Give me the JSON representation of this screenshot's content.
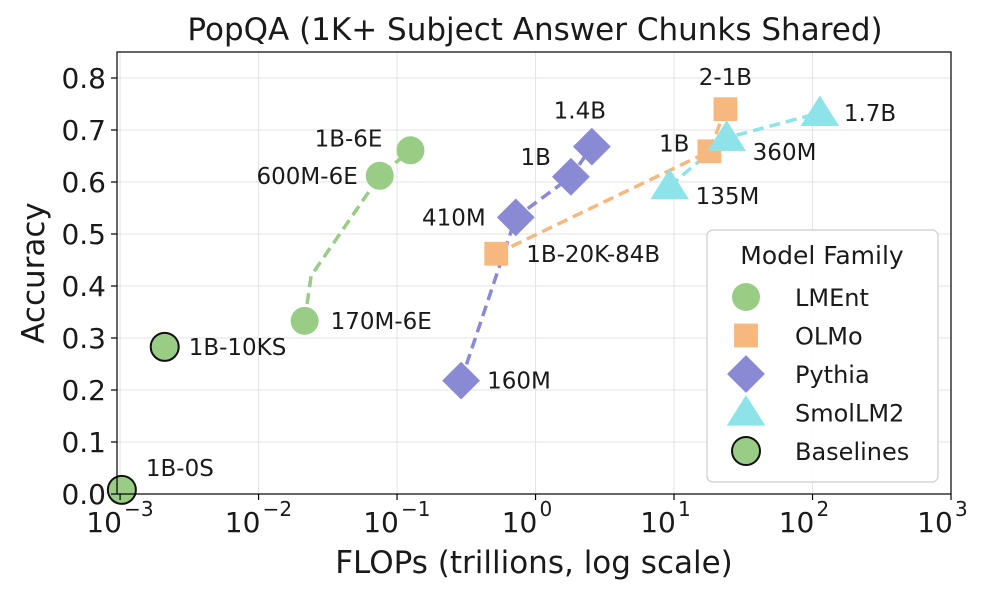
{
  "chart_data": {
    "type": "scatter",
    "title": "PopQA (1K+ Subject Answer Chunks Shared)",
    "xlabel": "FLOPs (trillions, log scale)",
    "ylabel": "Accuracy",
    "xscale": "log",
    "xlim": [
      0.00095,
      1000
    ],
    "ylim": [
      0.0,
      0.85
    ],
    "x_ticks": [
      0.001,
      0.01,
      0.1,
      1,
      10,
      100,
      1000
    ],
    "x_tick_labels": [
      {
        "base": "10",
        "exp": "−3"
      },
      {
        "base": "10",
        "exp": "−2"
      },
      {
        "base": "10",
        "exp": "−1"
      },
      {
        "base": "10",
        "exp": "0"
      },
      {
        "base": "10",
        "exp": "1"
      },
      {
        "base": "10",
        "exp": "2"
      },
      {
        "base": "10",
        "exp": "3"
      }
    ],
    "y_ticks": [
      0.0,
      0.1,
      0.2,
      0.3,
      0.4,
      0.5,
      0.6,
      0.7,
      0.8
    ],
    "y_tick_labels": [
      "0.0",
      "0.1",
      "0.2",
      "0.3",
      "0.4",
      "0.5",
      "0.6",
      "0.7",
      "0.8"
    ],
    "grid": true,
    "legend": {
      "title": "Model Family",
      "position": "lower-right"
    },
    "series": [
      {
        "name": "LMEnt",
        "marker": "circle",
        "color": "#99cc85",
        "line": true,
        "points": [
          {
            "x": 0.0215,
            "y": 0.333,
            "label": "170M-6E"
          },
          {
            "x": 0.024,
            "y": 0.42,
            "label": null
          },
          {
            "x": 0.075,
            "y": 0.612,
            "label": "600M-6E"
          },
          {
            "x": 0.125,
            "y": 0.661,
            "label": "1B-6E"
          }
        ]
      },
      {
        "name": "OLMo",
        "marker": "square",
        "color": "#f7b87f",
        "line": true,
        "points": [
          {
            "x": 0.52,
            "y": 0.462,
            "label": "1B-20K-84B"
          },
          {
            "x": 18.0,
            "y": 0.659,
            "label": "1B"
          },
          {
            "x": 23.5,
            "y": 0.74,
            "label": "2-1B"
          }
        ]
      },
      {
        "name": "Pythia",
        "marker": "diamond",
        "color": "#8a8ad4",
        "line": true,
        "points": [
          {
            "x": 0.29,
            "y": 0.218,
            "label": "160M"
          },
          {
            "x": 0.72,
            "y": 0.532,
            "label": "410M"
          },
          {
            "x": 1.8,
            "y": 0.61,
            "label": "1B"
          },
          {
            "x": 2.55,
            "y": 0.668,
            "label": "1.4B"
          }
        ]
      },
      {
        "name": "SmolLM2",
        "marker": "triangle",
        "color": "#8de3e8",
        "line": true,
        "points": [
          {
            "x": 9.3,
            "y": 0.592,
            "label": "135M"
          },
          {
            "x": 24.0,
            "y": 0.685,
            "label": "360M"
          },
          {
            "x": 113.0,
            "y": 0.733,
            "label": "1.7B"
          }
        ]
      },
      {
        "name": "Baselines",
        "marker": "circle-outlined",
        "color": "#99cc85",
        "line": false,
        "points": [
          {
            "x": 0.00103,
            "y": 0.008,
            "label": "1B-0S"
          },
          {
            "x": 0.0021,
            "y": 0.283,
            "label": "1B-10KS"
          }
        ]
      }
    ]
  }
}
